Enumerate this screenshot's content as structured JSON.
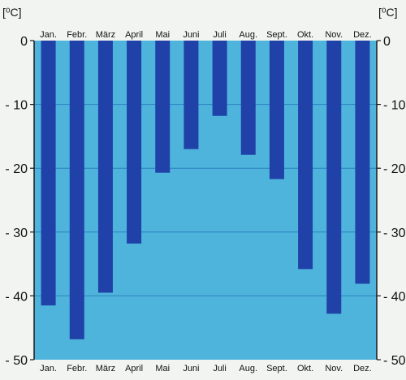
{
  "chart_data": {
    "type": "bar",
    "unit": "[⁰C]",
    "categories": [
      "Jan.",
      "Febr.",
      "März",
      "April",
      "Mai",
      "Juni",
      "Juli",
      "Aug.",
      "Sept.",
      "Okt.",
      "Nov.",
      "Dez."
    ],
    "series": [
      {
        "values": [
          -41.5,
          -46.8,
          -39.5,
          -31.8,
          -20.7,
          -17.0,
          -11.8,
          -17.9,
          -21.7,
          -35.8,
          -42.8,
          -38.1
        ]
      }
    ],
    "yticks": [
      "0",
      "- 10",
      "- 20",
      "- 30",
      "- 40",
      "- 50"
    ],
    "ylim": [
      -50,
      0
    ],
    "grid": true,
    "colors": {
      "plot_background": "#4fb4dc",
      "bar": "#1f41a8",
      "gridline": "#2f7fc2",
      "page_background": "#f2f4f1"
    }
  }
}
